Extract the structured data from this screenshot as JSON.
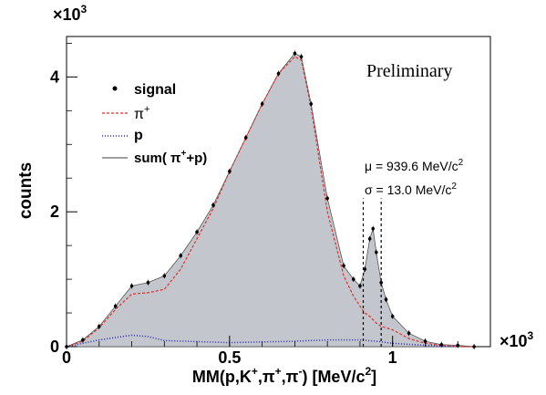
{
  "chart_data": {
    "type": "area",
    "title": "",
    "xlabel_prefix": "MM(p,K",
    "xlabel_mid1": ",π",
    "xlabel_mid2": ",π",
    "xlabel_suffix": ")  [MeV/c",
    "xlabel_end": "]",
    "ylabel": "counts",
    "x_multiplier": "×10",
    "y_multiplier": "×10",
    "multiplier_exp": "3",
    "xlim": [
      0.0,
      1.3
    ],
    "ylim": [
      0.0,
      4.6
    ],
    "x_ticks": [
      {
        "value": 0,
        "label": "0"
      },
      {
        "value": 0.5,
        "label": "0.5"
      },
      {
        "value": 1,
        "label": "1"
      }
    ],
    "y_ticks": [
      {
        "value": 0,
        "label": "0"
      },
      {
        "value": 2,
        "label": "2"
      },
      {
        "value": 4,
        "label": "4"
      }
    ],
    "annotations": {
      "preliminary": "Preliminary",
      "mu": "μ = 939.6 MeV/c",
      "sigma": "σ = 13.0 MeV/c",
      "exp2": "2"
    },
    "legend": {
      "position": "top-left",
      "signal": "signal",
      "pi": "π",
      "p": "p",
      "sum_pre": "sum( π",
      "sum_post": "+p)"
    },
    "colors": {
      "fill": "#c3c6cc",
      "pi_line": "#e0302a",
      "p_line": "#2828b8",
      "signal": "#000000"
    },
    "signal_x": [
      0.0,
      0.05,
      0.1,
      0.15,
      0.2,
      0.25,
      0.3,
      0.35,
      0.4,
      0.45,
      0.5,
      0.55,
      0.6,
      0.65,
      0.7,
      0.72,
      0.75,
      0.8,
      0.85,
      0.88,
      0.9,
      0.915,
      0.93,
      0.94,
      0.95,
      0.965,
      0.98,
      1.0,
      1.05,
      1.1,
      1.15,
      1.2,
      1.25
    ],
    "signal_y": [
      0.0,
      0.1,
      0.3,
      0.6,
      0.9,
      0.95,
      1.05,
      1.35,
      1.7,
      2.1,
      2.6,
      3.1,
      3.6,
      4.05,
      4.35,
      4.3,
      3.6,
      2.2,
      1.2,
      1.0,
      0.9,
      1.15,
      1.6,
      1.75,
      1.4,
      0.95,
      0.7,
      0.45,
      0.2,
      0.08,
      0.03,
      0.02,
      0.0
    ],
    "pi_y": [
      0.0,
      0.08,
      0.28,
      0.55,
      0.78,
      0.8,
      0.85,
      1.15,
      1.6,
      2.05,
      2.6,
      3.1,
      3.6,
      4.05,
      4.3,
      4.25,
      3.55,
      2.0,
      1.05,
      0.75,
      0.6,
      0.5,
      0.45,
      0.4,
      0.35,
      0.3,
      0.28,
      0.25,
      0.12,
      0.05,
      0.02,
      0.0,
      0.0
    ],
    "p_x": [
      0.0,
      0.1,
      0.2,
      0.25,
      0.3,
      0.5,
      0.7,
      0.8,
      0.9,
      0.95,
      1.0,
      1.1,
      1.2
    ],
    "p_y": [
      0.0,
      0.1,
      0.17,
      0.15,
      0.09,
      0.06,
      0.08,
      0.1,
      0.1,
      0.08,
      0.05,
      0.02,
      0.0
    ],
    "cut_lines_x": [
      0.91,
      0.965
    ]
  }
}
